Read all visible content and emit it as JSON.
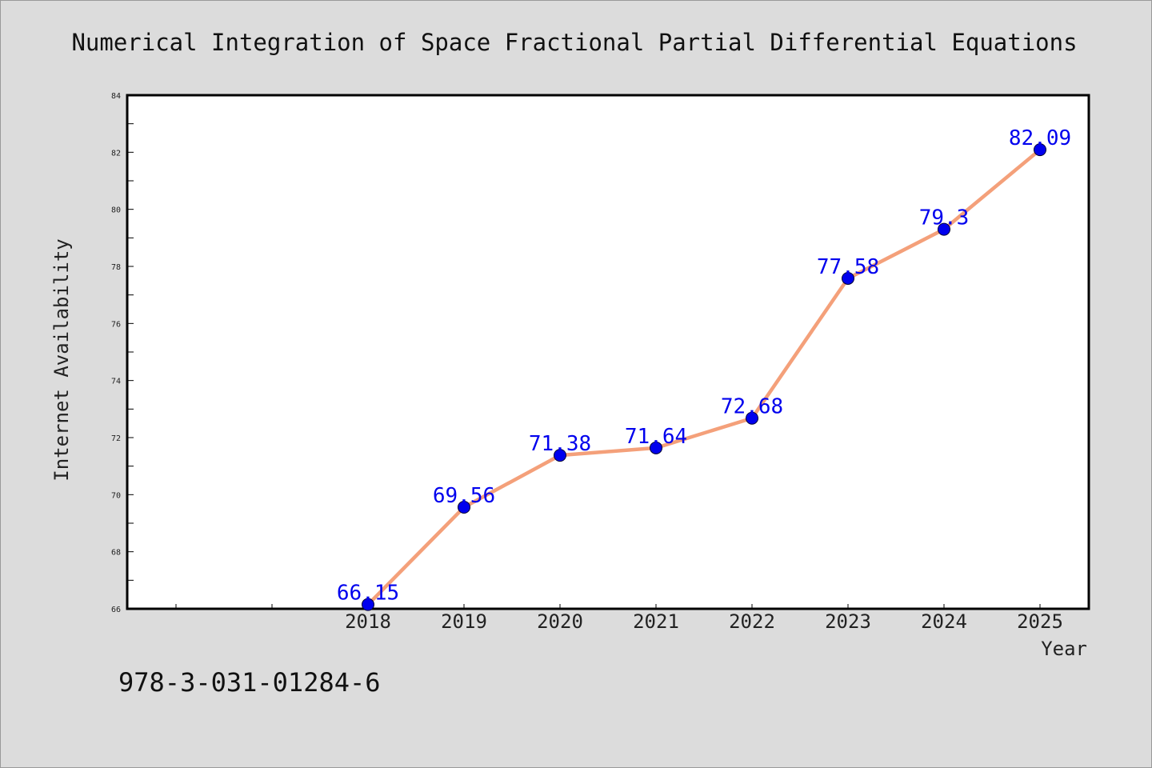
{
  "chart_data": {
    "type": "line",
    "title": "Numerical Integration of Space Fractional Partial Differential Equations",
    "xlabel": "Year",
    "ylabel": "Internet Availability",
    "x": [
      "2018",
      "2019",
      "2020",
      "2021",
      "2022",
      "2023",
      "2024",
      "2025"
    ],
    "series": [
      {
        "values": [
          66.15,
          69.56,
          71.38,
          71.64,
          72.68,
          77.58,
          79.3,
          82.09
        ],
        "data_labels": [
          "66.15",
          "69.56",
          "71.38",
          "71.64",
          "72.68",
          "77.58",
          "79.3",
          "82.09"
        ]
      }
    ],
    "ylim": [
      66,
      84
    ],
    "yticks": [
      "66",
      "68",
      "70",
      "72",
      "74",
      "76",
      "78",
      "80",
      "82",
      "84"
    ],
    "grid": false,
    "legend": "none",
    "colors": {
      "line": "#f4a07a",
      "marker": "#0000ee",
      "label": "#0000ee",
      "background": "#dcdcdc",
      "plot_area": "#ffffff"
    }
  },
  "footnote": "978-3-031-01284-6"
}
